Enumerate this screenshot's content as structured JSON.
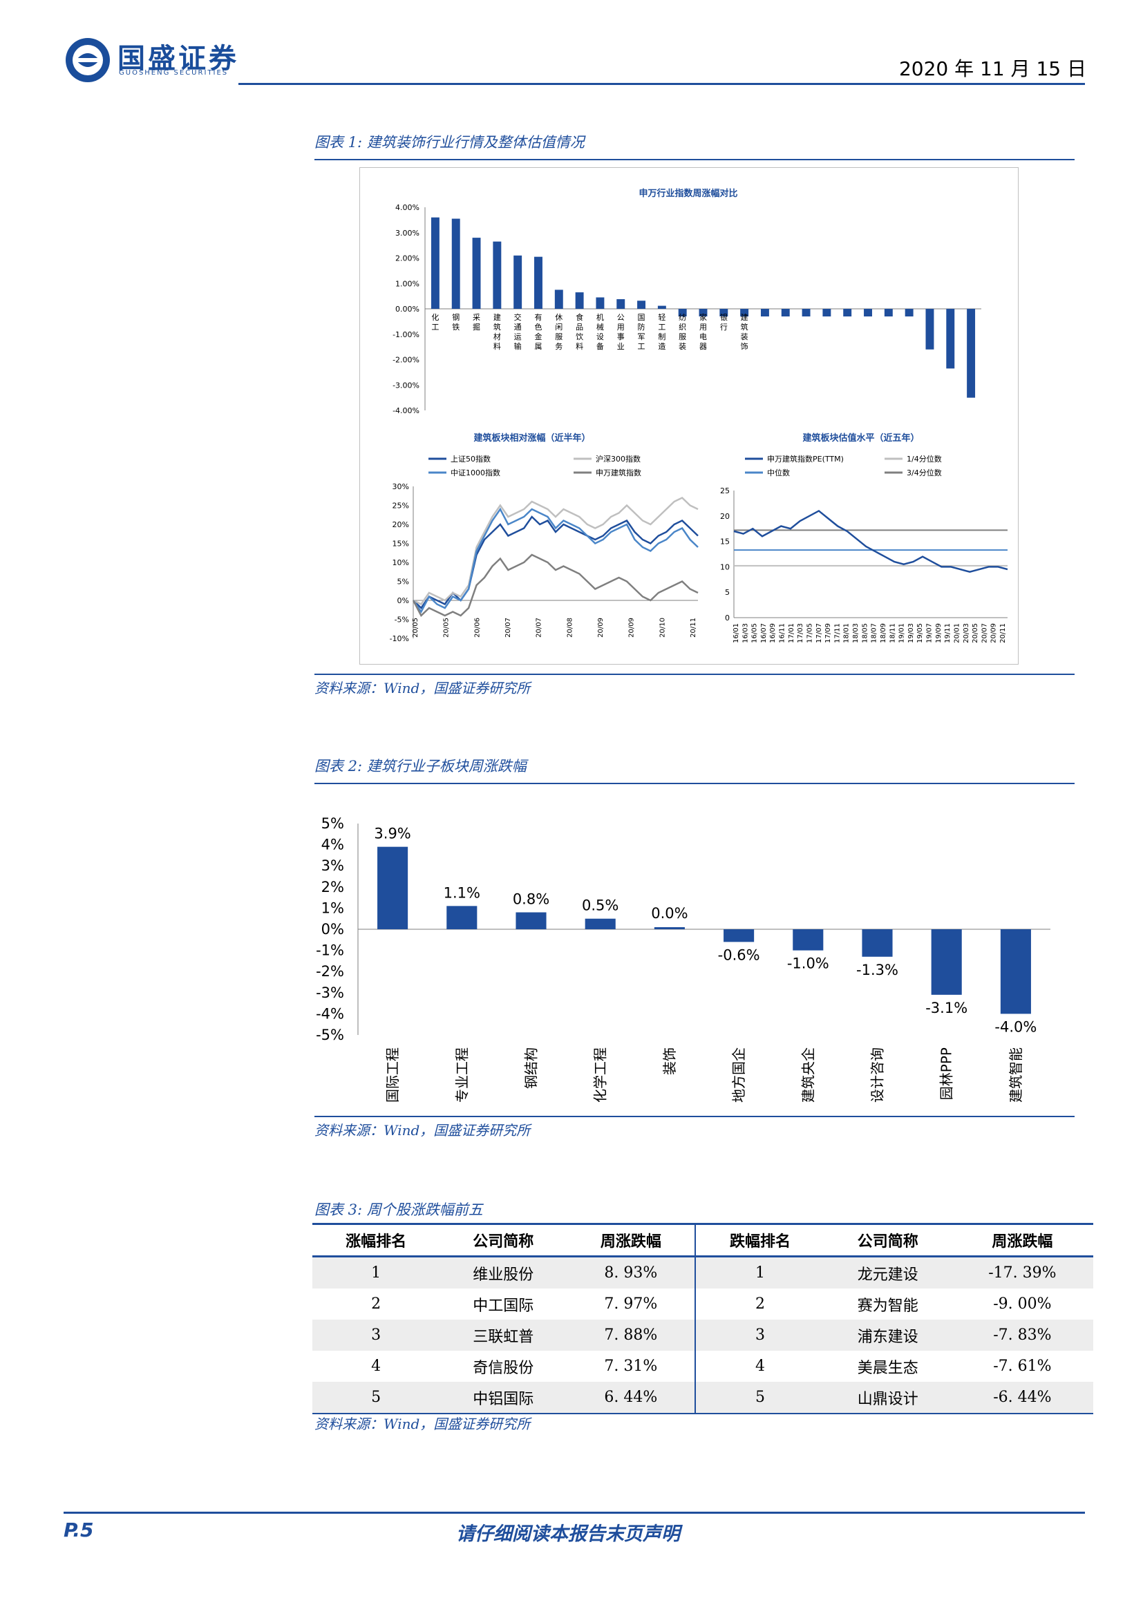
{
  "header": {
    "logo_cn": "国盛证券",
    "logo_en": "GUOSHENG SECURITIES",
    "date": "2020 年 11 月 15 日"
  },
  "fig1": {
    "caption": "图表 1:  建筑装饰行业行情及整体估值情况",
    "source": "资料来源：Wind，国盛证券研究所"
  },
  "fig2": {
    "caption": "图表 2:  建筑行业子板块周涨跌幅",
    "source": "资料来源：Wind，国盛证券研究所"
  },
  "fig3": {
    "caption": "图表 3:  周个股涨跌幅前五",
    "source": "资料来源：Wind，国盛证券研究所"
  },
  "chart_data": [
    {
      "type": "bar",
      "title": "申万行业指数周涨幅对比",
      "categories": [
        "化工",
        "钢铁",
        "采掘",
        "建筑材料",
        "交通运输",
        "有色金属",
        "休闲服务",
        "食品饮料",
        "机械设备",
        "公用事业",
        "国防军工",
        "轻工制造",
        "纺织服装",
        "家用电器",
        "银行",
        "建筑装饰",
        "",
        "",
        "",
        "",
        "",
        "",
        "",
        "",
        "",
        "",
        ""
      ],
      "values": [
        3.6,
        3.55,
        2.8,
        2.65,
        2.1,
        2.05,
        0.75,
        0.65,
        0.45,
        0.38,
        0.32,
        0.12,
        -0.3,
        -0.3,
        -0.3,
        -0.3,
        -0.3,
        -0.3,
        -0.3,
        -0.3,
        -0.3,
        -0.3,
        -0.3,
        -0.3,
        -1.6,
        -2.35,
        -3.5
      ],
      "yticks": [
        "4.00%",
        "3.00%",
        "2.00%",
        "1.00%",
        "0.00%",
        "-1.00%",
        "-2.00%",
        "-3.00%",
        "-4.00%"
      ],
      "ylim": [
        -4,
        4
      ],
      "color": "#1f4e9c"
    },
    {
      "type": "line",
      "title": "建筑板块相对涨幅（近半年）",
      "legend": [
        "上证50指数",
        "沪深300指数",
        "中证1000指数",
        "申万建筑指数"
      ],
      "colors": [
        "#1f4e9c",
        "#bfbfbf",
        "#4a86c8",
        "#7f7f7f"
      ],
      "yticks": [
        "30%",
        "25%",
        "20%",
        "15%",
        "10%",
        "5%",
        "0%",
        "-5%",
        "-10%"
      ],
      "ylim": [
        -10,
        30
      ],
      "xticks": [
        "20/05",
        "20/05",
        "20/06",
        "20/07",
        "20/07",
        "20/08",
        "20/09",
        "20/09",
        "20/10",
        "20/11"
      ],
      "series": [
        {
          "name": "上证50指数",
          "values": [
            0,
            -2,
            1,
            0,
            -1,
            2,
            0,
            3,
            12,
            16,
            18,
            20,
            17,
            18,
            19,
            22,
            20,
            21,
            18,
            20,
            19,
            18,
            17,
            16,
            17,
            19,
            20,
            21,
            18,
            16,
            15,
            17,
            18,
            20,
            21,
            19,
            17
          ]
        },
        {
          "name": "沪深300指数",
          "values": [
            0,
            -1,
            2,
            1,
            0,
            2,
            1,
            4,
            14,
            18,
            22,
            25,
            22,
            23,
            24,
            26,
            25,
            24,
            22,
            24,
            23,
            22,
            20,
            19,
            20,
            22,
            23,
            25,
            23,
            21,
            20,
            22,
            24,
            26,
            27,
            25,
            24
          ]
        },
        {
          "name": "中证1000指数",
          "values": [
            0,
            -3,
            1,
            -1,
            -2,
            1,
            0,
            3,
            13,
            17,
            21,
            24,
            20,
            21,
            22,
            24,
            23,
            22,
            19,
            21,
            20,
            19,
            17,
            15,
            16,
            18,
            19,
            20,
            16,
            14,
            13,
            15,
            16,
            18,
            19,
            16,
            14
          ]
        },
        {
          "name": "申万建筑指数",
          "values": [
            0,
            -4,
            -2,
            -3,
            -4,
            -3,
            -4,
            -2,
            4,
            6,
            9,
            11,
            8,
            9,
            10,
            12,
            11,
            10,
            8,
            9,
            8,
            7,
            5,
            3,
            4,
            5,
            6,
            5,
            3,
            1,
            0,
            2,
            3,
            4,
            5,
            3,
            2
          ]
        }
      ]
    },
    {
      "type": "line",
      "title": "建筑板块估值水平（近五年）",
      "legend": [
        "申万建筑指数PE(TTM)",
        "1/4分位数",
        "中位数",
        "3/4分位数"
      ],
      "colors": [
        "#1f4e9c",
        "#bfbfbf",
        "#4a86c8",
        "#7f7f7f"
      ],
      "yticks": [
        "25",
        "20",
        "15",
        "10",
        "5",
        "0"
      ],
      "ylim": [
        0,
        25
      ],
      "xticks": [
        "16/01",
        "16/03",
        "16/05",
        "16/07",
        "16/09",
        "16/11",
        "17/01",
        "17/03",
        "17/05",
        "17/07",
        "17/09",
        "17/11",
        "18/01",
        "18/03",
        "18/05",
        "18/07",
        "18/09",
        "18/11",
        "19/01",
        "19/03",
        "19/05",
        "19/07",
        "19/09",
        "19/11",
        "20/01",
        "20/03",
        "20/05",
        "20/07",
        "20/09",
        "20/11"
      ],
      "quartiles": {
        "q1": 10.2,
        "median": 13.3,
        "q3": 17.2
      },
      "series": [
        {
          "name": "申万建筑指数PE(TTM)",
          "values": [
            17,
            16.5,
            17.5,
            16,
            17,
            18,
            17.5,
            19,
            20,
            21,
            19.5,
            18,
            17,
            15.5,
            14,
            13,
            12,
            11,
            10.5,
            11,
            12,
            11,
            10,
            10,
            9.5,
            9,
            9.5,
            10,
            10,
            9.5
          ]
        }
      ]
    },
    {
      "type": "bar",
      "categories": [
        "国际工程",
        "专业工程",
        "钢结构",
        "化学工程",
        "装饰",
        "地方国企",
        "建筑央企",
        "设计咨询",
        "园林PPP",
        "建筑智能"
      ],
      "values": [
        3.9,
        1.1,
        0.8,
        0.5,
        0.0,
        -0.6,
        -1.0,
        -1.3,
        -3.1,
        -4.0
      ],
      "data_labels": [
        "3.9%",
        "1.1%",
        "0.8%",
        "0.5%",
        "0.0%",
        "-0.6%",
        "-1.0%",
        "-1.3%",
        "-3.1%",
        "-4.0%"
      ],
      "yticks": [
        "5%",
        "4%",
        "3%",
        "2%",
        "1%",
        "0%",
        "-1%",
        "-2%",
        "-3%",
        "-4%",
        "-5%"
      ],
      "ylim": [
        -5,
        5
      ],
      "color": "#1f4e9c"
    },
    {
      "type": "table",
      "headers": [
        "涨幅排名",
        "公司简称",
        "周涨跌幅",
        "跌幅排名",
        "公司简称",
        "周涨跌幅"
      ],
      "rows": [
        [
          "1",
          "维业股份",
          "8. 93%",
          "1",
          "龙元建设",
          "-17. 39%"
        ],
        [
          "2",
          "中工国际",
          "7. 97%",
          "2",
          "赛为智能",
          "-9. 00%"
        ],
        [
          "3",
          "三联虹普",
          "7. 88%",
          "3",
          "浦东建设",
          "-7. 83%"
        ],
        [
          "4",
          "奇信股份",
          "7. 31%",
          "4",
          "美晨生态",
          "-7. 61%"
        ],
        [
          "5",
          "中铝国际",
          "6. 44%",
          "5",
          "山鼎设计",
          "-6. 44%"
        ]
      ]
    }
  ],
  "footer": {
    "page": "P.5",
    "disclaimer": "请仔细阅读本报告末页声明"
  }
}
